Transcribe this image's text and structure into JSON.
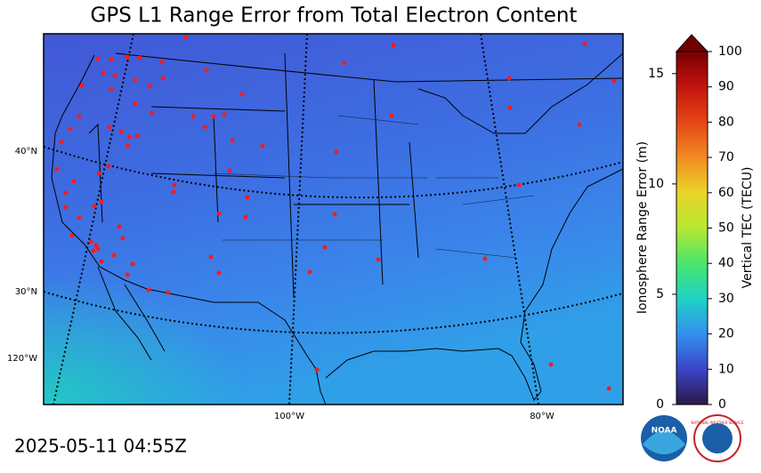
{
  "title": "GPS L1 Range Error from Total Electron Content",
  "timestamp": "2025-05-11 04:55Z",
  "map": {
    "lat_labels": [
      "40°N",
      "30°N",
      "120°W"
    ],
    "lon_labels": [
      "100°W",
      "80°W"
    ]
  },
  "colorbar": {
    "left_label": "Ionosphere Range Error (m)",
    "left_lim": [
      0,
      16
    ],
    "left_ticks": [
      0,
      5,
      10,
      15
    ],
    "right_label": "Vertical TEC (TECU)",
    "right_lim": [
      0,
      100
    ],
    "right_ticks": [
      0,
      10,
      20,
      30,
      40,
      50,
      60,
      70,
      80,
      90,
      100
    ]
  },
  "logos": {
    "noaa": "NOAA",
    "nws": "NATIONAL WEATHER SERVICE"
  }
}
